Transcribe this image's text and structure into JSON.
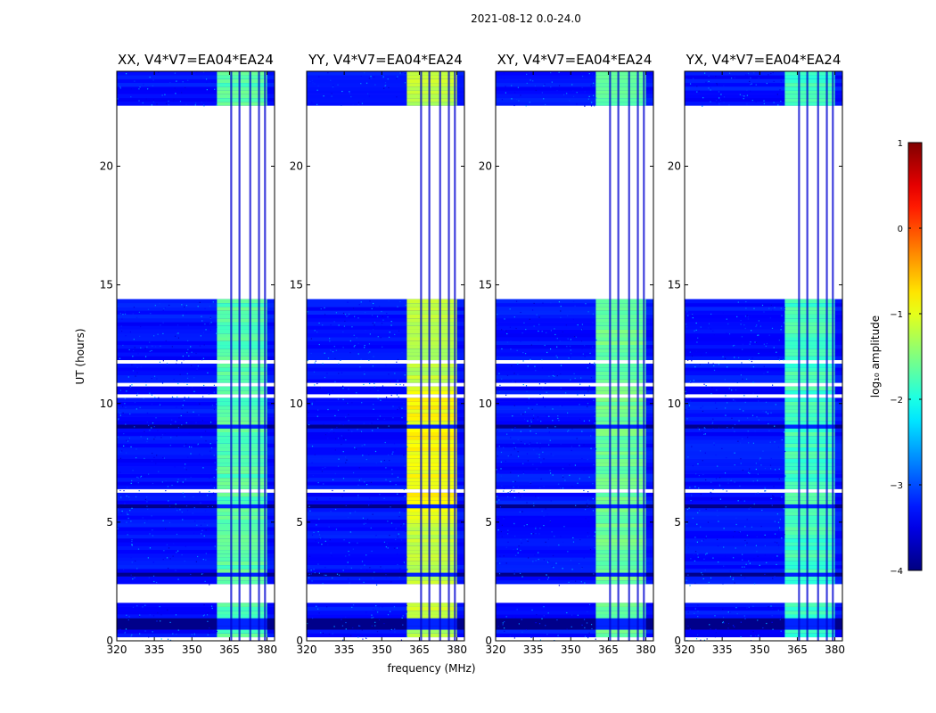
{
  "figure": {
    "suptitle": "2021-08-12 0.0-24.0",
    "ylabel": "UT (hours)",
    "xlabel": "frequency (MHz)",
    "colorbar_label": "log₁₀ amplitude"
  },
  "chart_data": {
    "type": "heatmap",
    "panels": [
      {
        "title": "XX, V4*V7=EA04*EA24",
        "polarization": "XX",
        "band_level": -1.7
      },
      {
        "title": "YY, V4*V7=EA04*EA24",
        "polarization": "YY",
        "band_level": -1.2
      },
      {
        "title": "XY, V4*V7=EA04*EA24",
        "polarization": "XY",
        "band_level": -1.6
      },
      {
        "title": "YX, V4*V7=EA04*EA24",
        "polarization": "YX",
        "band_level": -1.8
      }
    ],
    "xlim": [
      320,
      383
    ],
    "ylim": [
      0,
      24
    ],
    "xticks": [
      320,
      335,
      350,
      365,
      380
    ],
    "yticks": [
      0,
      5,
      10,
      15,
      20
    ],
    "colorbar": {
      "vmin": -4,
      "vmax": 1,
      "ticks": [
        1,
        0,
        -1,
        -2,
        -3,
        -4
      ],
      "cmap": "jet"
    },
    "flagged_time_ranges": [
      [
        1.55,
        2.35
      ],
      [
        14.35,
        22.55
      ]
    ],
    "bright_band_mhz": [
      360,
      380
    ],
    "background_level": -3.3,
    "peak_time_range_yy": [
      5.0,
      10.5
    ]
  }
}
